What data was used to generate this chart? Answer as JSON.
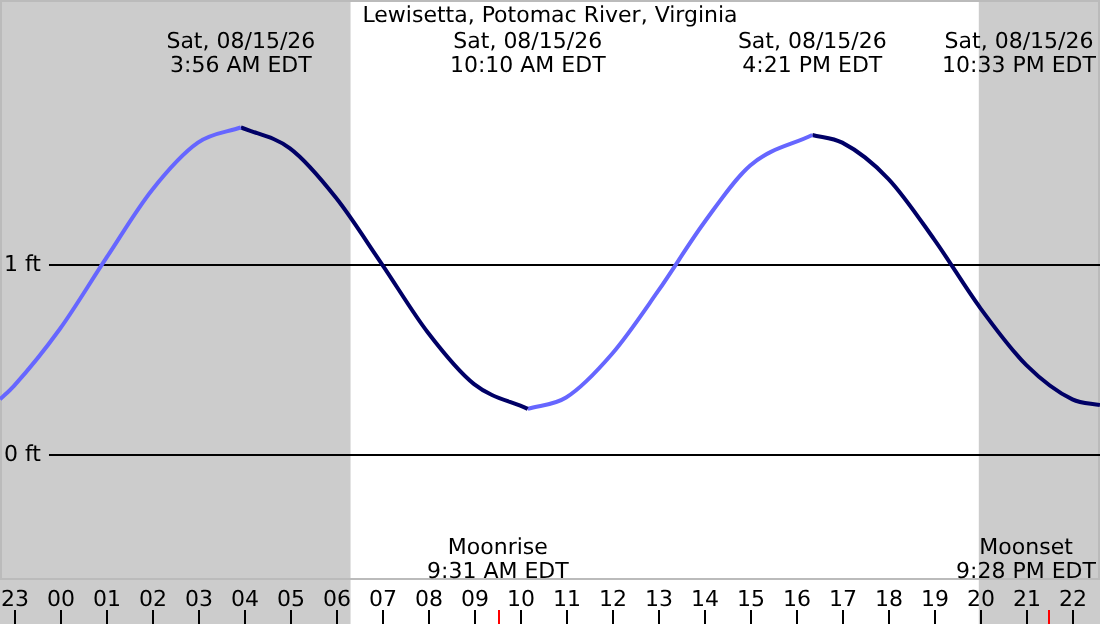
{
  "chart_data": {
    "type": "line",
    "title": "Lewisetta, Potomac River, Virginia",
    "xlim": [
      "--08-14T22:42",
      "--08-15T22:36"
    ],
    "ylim": [
      -0.66,
      2.39
    ],
    "xticks": [
      {
        "value": "--08-14T23:00",
        "label": "23"
      },
      {
        "value": "--08-15T00:00",
        "label": "00"
      },
      {
        "value": "--08-15T01:00",
        "label": "01"
      },
      {
        "value": "--08-15T02:00",
        "label": "02"
      },
      {
        "value": "--08-15T03:00",
        "label": "03"
      },
      {
        "value": "--08-15T04:00",
        "label": "04"
      },
      {
        "value": "--08-15T05:00",
        "label": "05"
      },
      {
        "value": "--08-15T06:00",
        "label": "06"
      },
      {
        "value": "--08-15T07:00",
        "label": "07"
      },
      {
        "value": "--08-15T08:00",
        "label": "08"
      },
      {
        "value": "--08-15T09:00",
        "label": "09"
      },
      {
        "value": "--08-15T10:00",
        "label": "10"
      },
      {
        "value": "--08-15T11:00",
        "label": "11"
      },
      {
        "value": "--08-15T12:00",
        "label": "12"
      },
      {
        "value": "--08-15T13:00",
        "label": "13"
      },
      {
        "value": "--08-15T14:00",
        "label": "14"
      },
      {
        "value": "--08-15T15:00",
        "label": "15"
      },
      {
        "value": "--08-15T16:00",
        "label": "16"
      },
      {
        "value": "--08-15T17:00",
        "label": "17"
      },
      {
        "value": "--08-15T18:00",
        "label": "18"
      },
      {
        "value": "--08-15T19:00",
        "label": "19"
      },
      {
        "value": "--08-15T20:00",
        "label": "20"
      },
      {
        "value": "--08-15T21:00",
        "label": "21"
      },
      {
        "value": "--08-15T22:00",
        "label": "22"
      }
    ],
    "yticks": [
      {
        "value": 0,
        "label": "0 ft"
      },
      {
        "value": 1,
        "label": "1 ft"
      }
    ],
    "grid": "y",
    "legend": false,
    "marker": "none",
    "line_style": "solid",
    "series": [
      {
        "color": "#6666ff",
        "x": [
          "--08-14T22:42",
          "--08-14T23:00",
          "--08-15T00:00",
          "--08-15T01:00",
          "--08-15T02:00",
          "--08-15T03:00",
          "--08-15T03:56"
        ],
        "values": [
          0.29,
          0.36,
          0.66,
          1.03,
          1.39,
          1.64,
          1.72
        ]
      },
      {
        "color": "#000066",
        "x": [
          "--08-15T03:56",
          "--08-15T05:00",
          "--08-15T06:00",
          "--08-15T07:00",
          "--08-15T08:00",
          "--08-15T09:00",
          "--08-15T10:10"
        ],
        "values": [
          1.72,
          1.61,
          1.35,
          1.0,
          0.64,
          0.37,
          0.24
        ]
      },
      {
        "color": "#6666ff",
        "x": [
          "--08-15T10:10",
          "--08-15T11:00",
          "--08-15T12:00",
          "--08-15T13:00",
          "--08-15T14:00",
          "--08-15T15:00",
          "--08-15T16:21"
        ],
        "values": [
          0.24,
          0.3,
          0.53,
          0.86,
          1.22,
          1.52,
          1.68
        ]
      },
      {
        "color": "#000066",
        "x": [
          "--08-15T16:21",
          "--08-15T17:00",
          "--08-15T18:00",
          "--08-15T19:00",
          "--08-15T20:00",
          "--08-15T21:00",
          "--08-15T22:00",
          "--08-15T22:36"
        ],
        "values": [
          1.68,
          1.64,
          1.45,
          1.13,
          0.77,
          0.47,
          0.29,
          0.26
        ]
      }
    ],
    "bands": [
      {
        "axis": "x",
        "from": "--08-14T22:42",
        "to": "--08-15T06:19",
        "color": "#cccccc"
      },
      {
        "axis": "x",
        "from": "--08-15T19:58",
        "to": "--08-15T22:36",
        "color": "#cccccc"
      }
    ],
    "ref_lines": [
      {
        "axis": "x",
        "value": "--08-15T09:31",
        "label": "Moonrise\n9:31 AM EDT",
        "color": "#ff0000"
      },
      {
        "axis": "x",
        "value": "--08-15T21:28",
        "label": "Moonset\n9:28 PM EDT",
        "color": "#ff0000"
      }
    ],
    "annotations": [
      "Sat, 08/15/26\n3:56 AM EDT",
      "Sat, 08/15/26\n10:10 AM EDT",
      "Sat, 08/15/26\n4:21 PM EDT",
      "Sat, 08/15/26\n10:33 PM EDT"
    ]
  }
}
